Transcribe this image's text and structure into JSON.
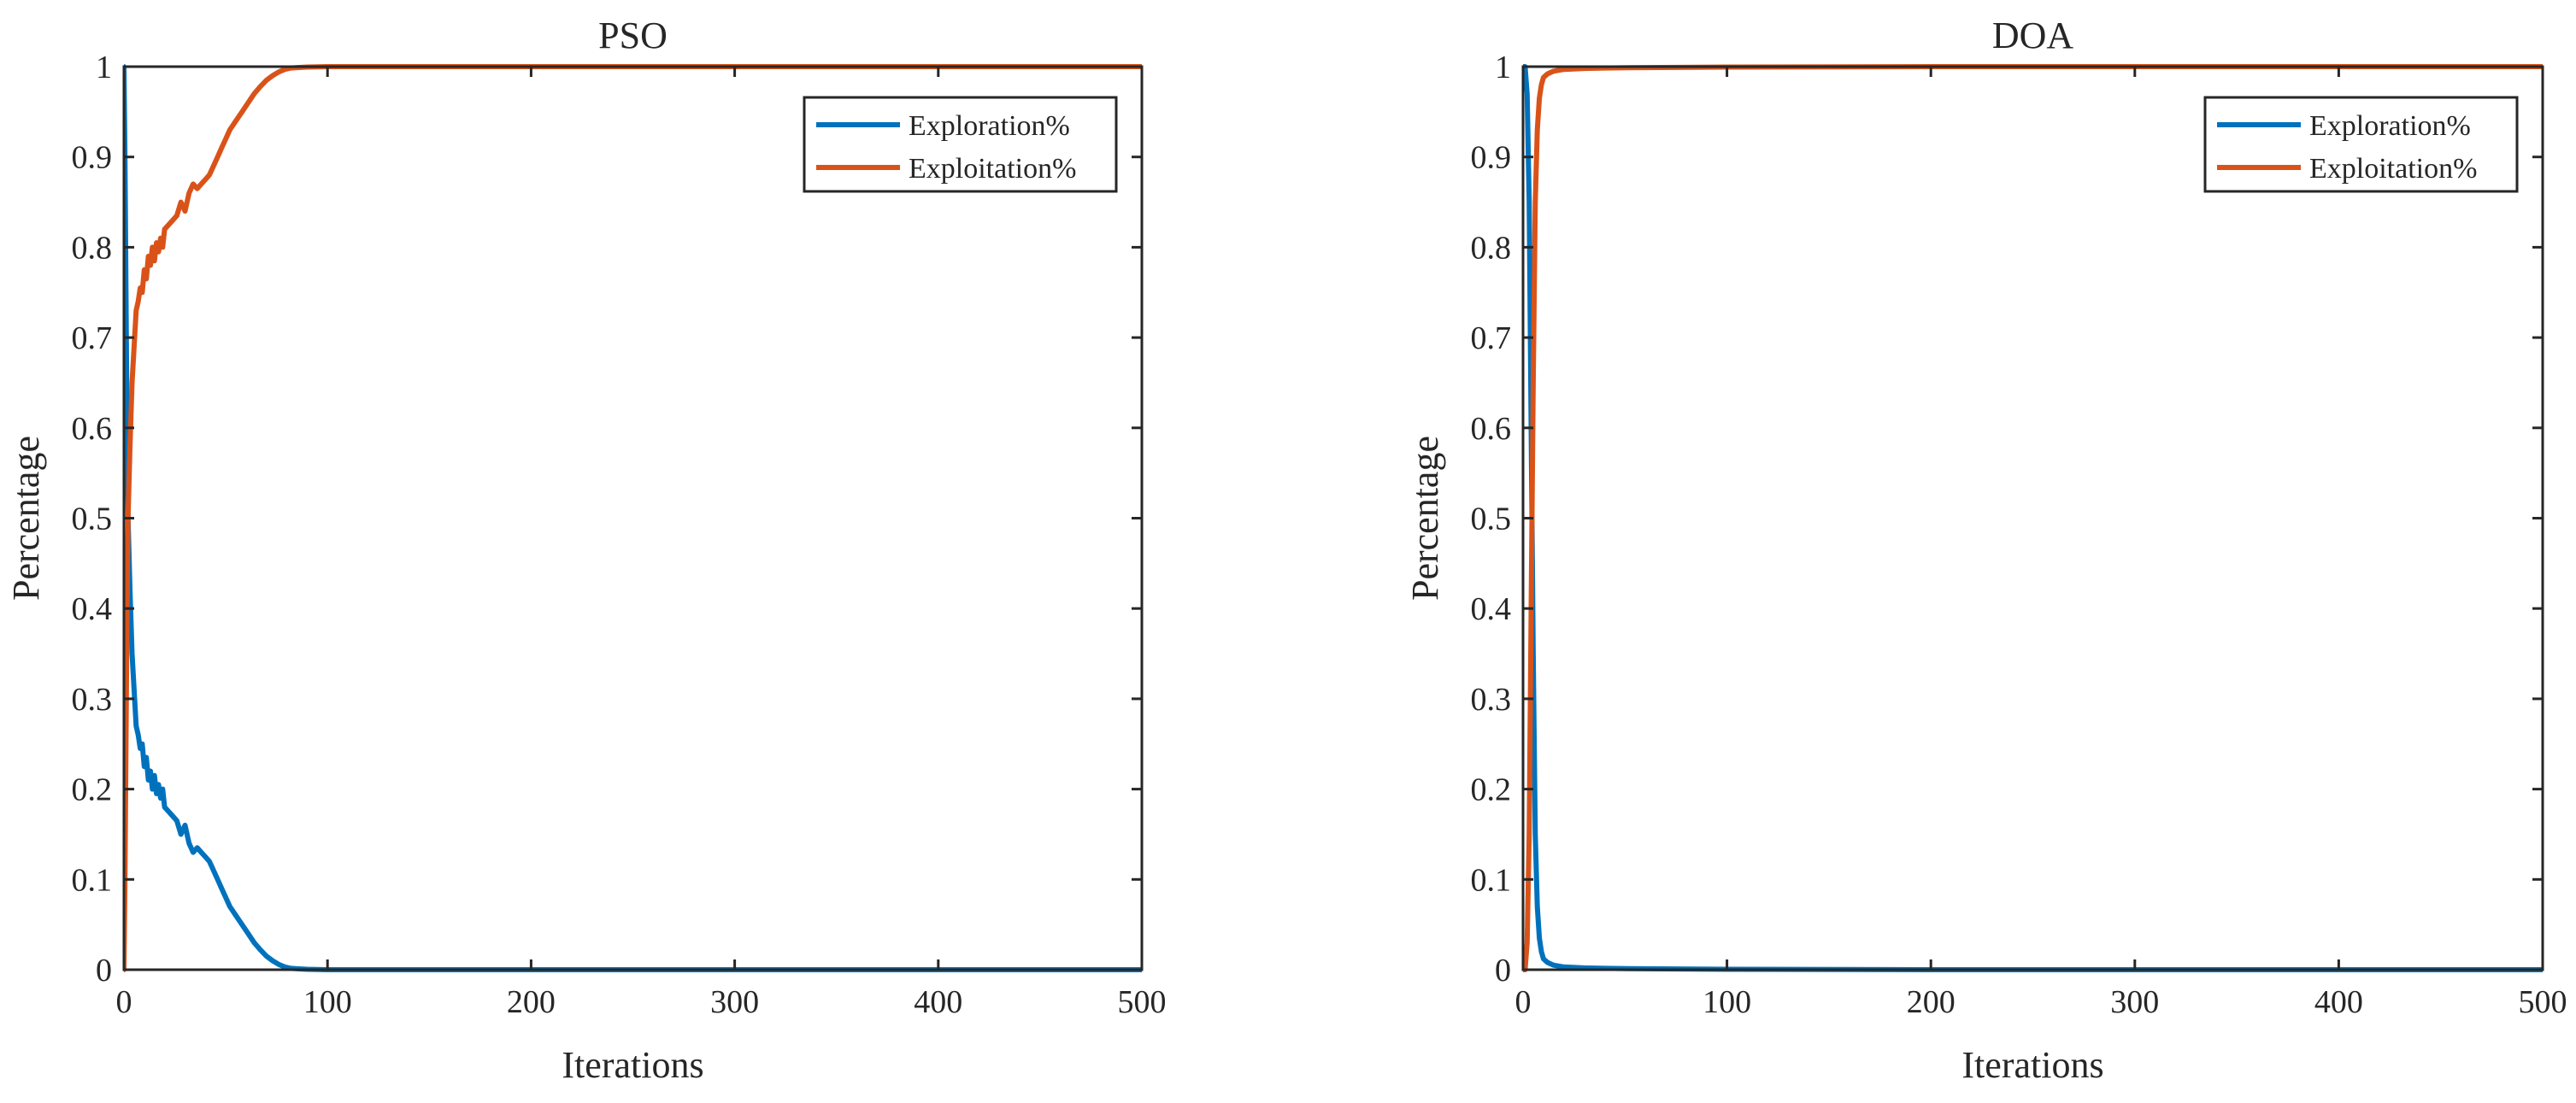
{
  "chart_data": [
    {
      "type": "line",
      "title": "PSO",
      "xlabel": "Iterations",
      "ylabel": "Percentage",
      "xlim": [
        0,
        500
      ],
      "ylim": [
        0,
        1
      ],
      "xticks": [
        "0",
        "100",
        "200",
        "300",
        "400",
        "500"
      ],
      "yticks": [
        "0",
        "0.1",
        "0.2",
        "0.3",
        "0.4",
        "0.5",
        "0.6",
        "0.7",
        "0.8",
        "0.9",
        "1"
      ],
      "grid": false,
      "legend_position": "top-right",
      "series": [
        {
          "name": "Exploration%",
          "color": "#0072BD",
          "x": [
            0,
            0.5,
            1,
            1.5,
            2,
            3,
            4,
            5,
            6,
            7,
            8,
            9,
            10,
            11,
            12,
            13,
            14,
            15,
            16,
            17,
            18,
            19,
            20,
            22,
            24,
            26,
            28,
            30,
            32,
            34,
            36,
            38,
            40,
            42,
            44,
            46,
            48,
            50,
            52,
            55,
            58,
            61,
            64,
            67,
            70,
            73,
            76,
            79,
            82,
            85,
            90,
            95,
            100,
            150,
            200,
            300,
            400,
            500
          ],
          "y": [
            1.0,
            0.9,
            0.75,
            0.6,
            0.5,
            0.42,
            0.35,
            0.31,
            0.27,
            0.26,
            0.245,
            0.25,
            0.225,
            0.235,
            0.21,
            0.22,
            0.2,
            0.215,
            0.195,
            0.205,
            0.19,
            0.2,
            0.18,
            0.175,
            0.17,
            0.165,
            0.15,
            0.16,
            0.14,
            0.13,
            0.135,
            0.13,
            0.125,
            0.12,
            0.11,
            0.1,
            0.09,
            0.08,
            0.07,
            0.06,
            0.05,
            0.04,
            0.03,
            0.022,
            0.015,
            0.01,
            0.006,
            0.003,
            0.0015,
            0.001,
            0.0005,
            0.0002,
            0.0,
            0.0,
            0.0,
            0.0,
            0.0,
            0.0
          ]
        },
        {
          "name": "Exploitation%",
          "color": "#D95319",
          "x": [
            0,
            0.5,
            1,
            1.5,
            2,
            3,
            4,
            5,
            6,
            7,
            8,
            9,
            10,
            11,
            12,
            13,
            14,
            15,
            16,
            17,
            18,
            19,
            20,
            22,
            24,
            26,
            28,
            30,
            32,
            34,
            36,
            38,
            40,
            42,
            44,
            46,
            48,
            50,
            52,
            55,
            58,
            61,
            64,
            67,
            70,
            73,
            76,
            79,
            82,
            85,
            90,
            95,
            100,
            150,
            200,
            300,
            400,
            500
          ],
          "y": [
            0.0,
            0.1,
            0.25,
            0.4,
            0.5,
            0.58,
            0.65,
            0.69,
            0.73,
            0.74,
            0.755,
            0.75,
            0.775,
            0.765,
            0.79,
            0.78,
            0.8,
            0.785,
            0.805,
            0.795,
            0.81,
            0.8,
            0.82,
            0.825,
            0.83,
            0.835,
            0.85,
            0.84,
            0.86,
            0.87,
            0.865,
            0.87,
            0.875,
            0.88,
            0.89,
            0.9,
            0.91,
            0.92,
            0.93,
            0.94,
            0.95,
            0.96,
            0.97,
            0.978,
            0.985,
            0.99,
            0.994,
            0.997,
            0.9985,
            0.999,
            0.9995,
            0.9998,
            1.0,
            1.0,
            1.0,
            1.0,
            1.0,
            1.0
          ]
        }
      ]
    },
    {
      "type": "line",
      "title": "DOA",
      "xlabel": "Iterations",
      "ylabel": "Percentage",
      "xlim": [
        0,
        500
      ],
      "ylim": [
        0,
        1
      ],
      "xticks": [
        "0",
        "100",
        "200",
        "300",
        "400",
        "500"
      ],
      "yticks": [
        "0",
        "0.1",
        "0.2",
        "0.3",
        "0.4",
        "0.5",
        "0.6",
        "0.7",
        "0.8",
        "0.9",
        "1"
      ],
      "grid": false,
      "legend_position": "top-right",
      "series": [
        {
          "name": "Exploration%",
          "color": "#0072BD",
          "x": [
            0,
            1,
            2,
            3,
            4,
            5,
            6,
            7,
            8,
            9,
            10,
            12,
            15,
            20,
            30,
            40,
            60,
            100,
            200,
            300,
            400,
            500
          ],
          "y": [
            1.0,
            1.0,
            0.97,
            0.85,
            0.6,
            0.35,
            0.15,
            0.07,
            0.035,
            0.02,
            0.012,
            0.008,
            0.005,
            0.003,
            0.002,
            0.0015,
            0.001,
            0.0005,
            0.0,
            0.0,
            0.0,
            0.0
          ]
        },
        {
          "name": "Exploitation%",
          "color": "#D95319",
          "x": [
            0,
            1,
            2,
            3,
            4,
            5,
            6,
            7,
            8,
            9,
            10,
            12,
            15,
            20,
            30,
            40,
            60,
            100,
            200,
            300,
            400,
            500
          ],
          "y": [
            0.0,
            0.0,
            0.03,
            0.15,
            0.4,
            0.65,
            0.85,
            0.93,
            0.965,
            0.98,
            0.988,
            0.992,
            0.995,
            0.997,
            0.998,
            0.9985,
            0.999,
            0.9995,
            1.0,
            1.0,
            1.0,
            1.0
          ]
        }
      ]
    }
  ]
}
